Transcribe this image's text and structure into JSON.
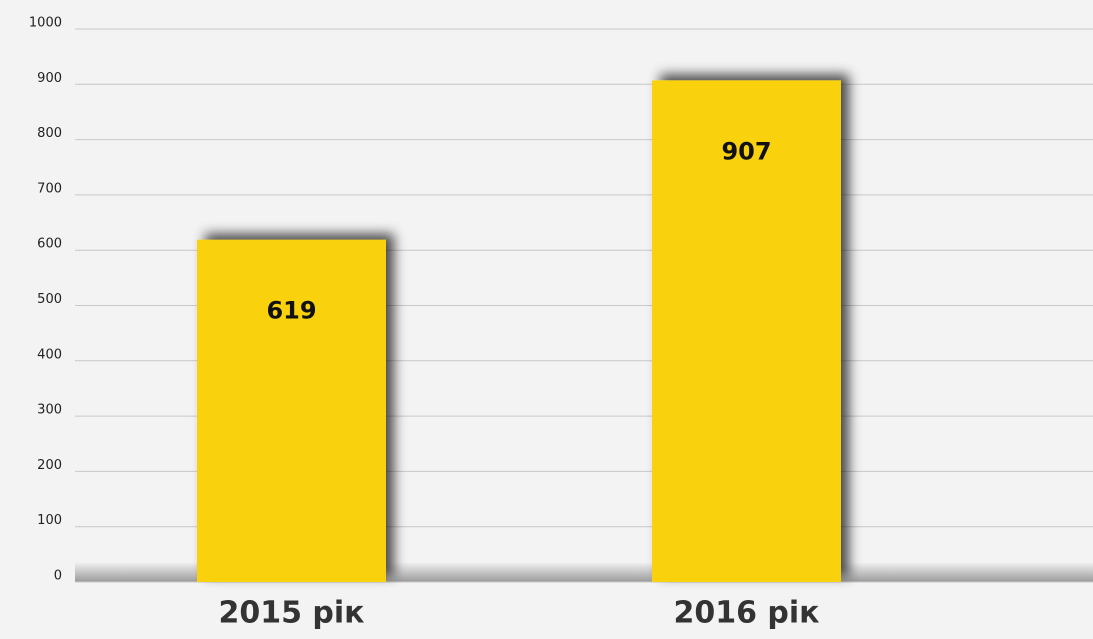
{
  "chart_data": {
    "type": "bar",
    "categories": [
      "2015 рік",
      "2016 рік"
    ],
    "values": [
      619,
      907
    ],
    "color": "#f9d10a",
    "ylim": [
      0,
      1000
    ],
    "yticks": [
      0,
      100,
      200,
      300,
      400,
      500,
      600,
      700,
      800,
      900,
      1000
    ],
    "grid": true
  }
}
